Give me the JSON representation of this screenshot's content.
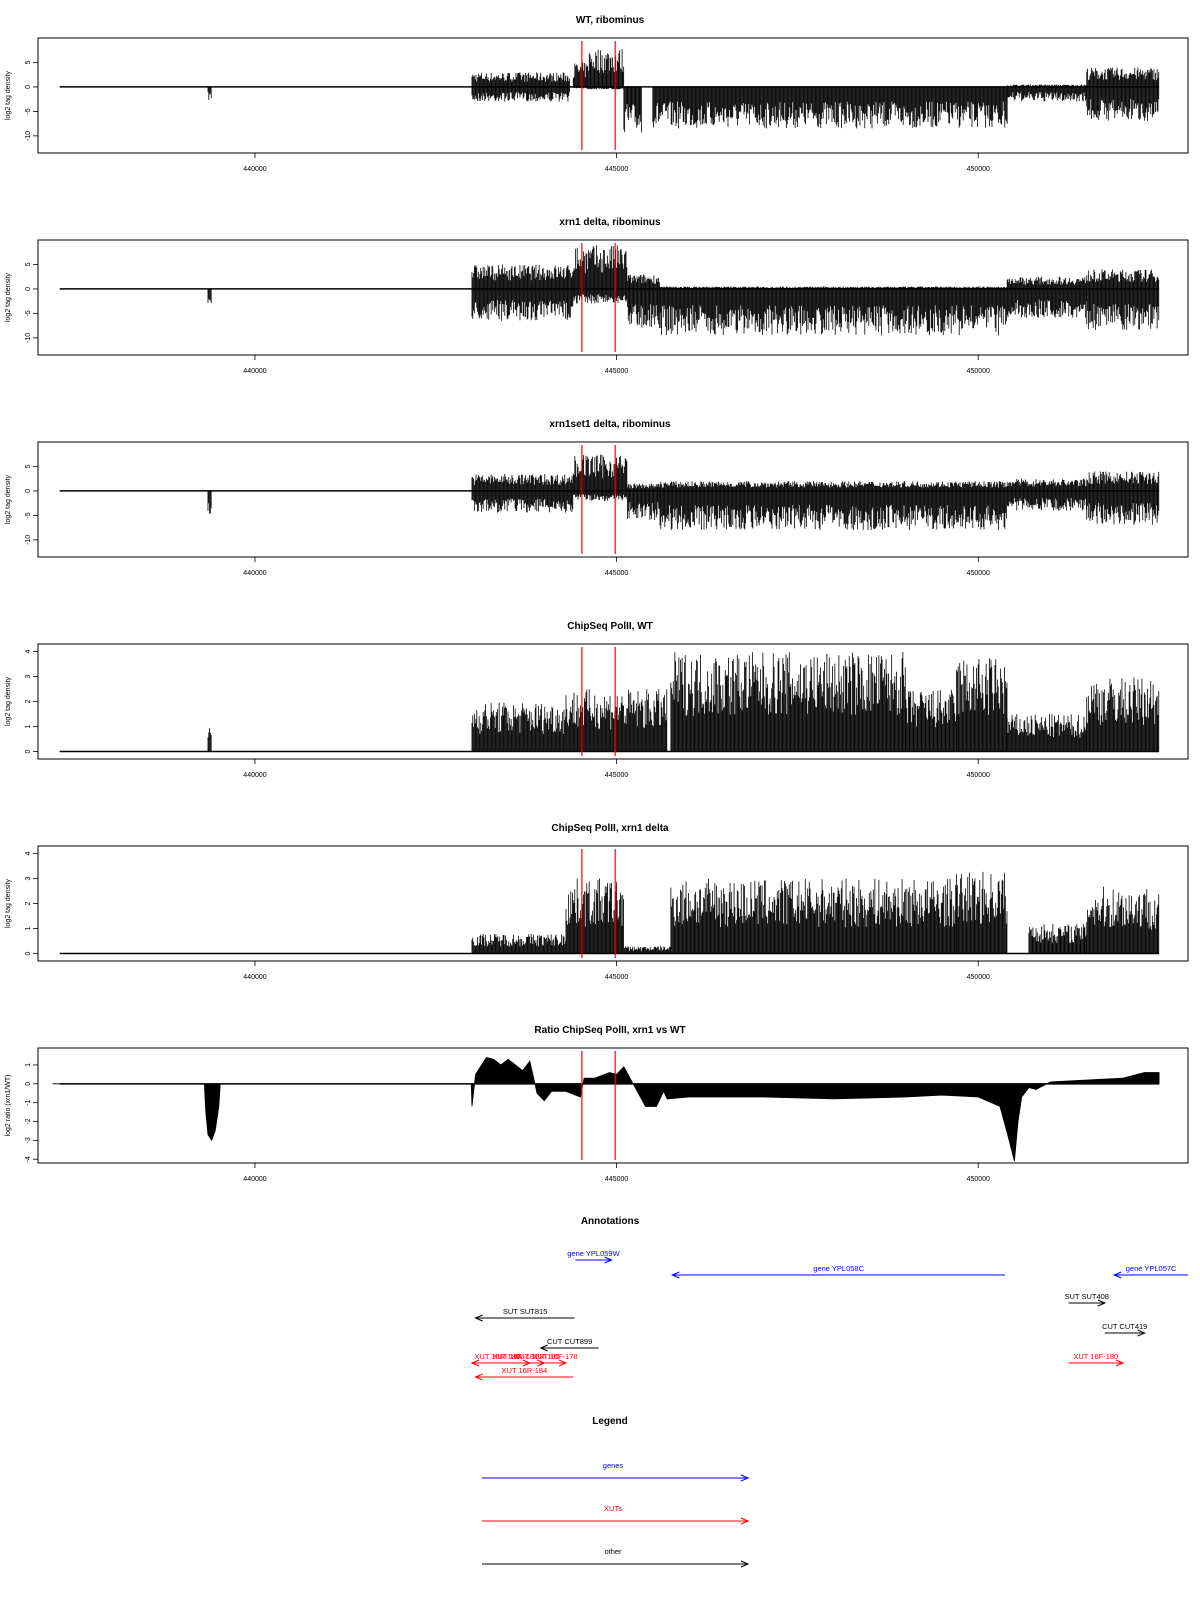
{
  "colors": {
    "gene": "#0000ff",
    "xut": "#ff0000",
    "other": "#000000",
    "marker": "#ff0000",
    "signal": "#000000"
  },
  "xaxis": {
    "range": [
      437000,
      452900
    ],
    "ticks": [
      440000,
      445000,
      450000
    ],
    "tick_labels": [
      "440000",
      "445000",
      "450000"
    ]
  },
  "chart_data": [
    {
      "type": "bar",
      "title": "WT, ribominus",
      "ylabel": "log2 tag density",
      "ylim": [
        -13.5,
        10
      ],
      "yticks": [
        5,
        0,
        -5,
        -10
      ],
      "ytick_labels": [
        "5",
        "0",
        "-5",
        "-10"
      ],
      "markers_x": [
        444520,
        444980
      ],
      "regions": [
        {
          "x": [
            439350,
            439400
          ],
          "up": 0,
          "down": 2.8
        },
        {
          "x": [
            443000,
            444350
          ],
          "up": 3,
          "down": 3
        },
        {
          "x": [
            444400,
            444600
          ],
          "up": 5,
          "down": 0.3
        },
        {
          "x": [
            444600,
            445100
          ],
          "up": 8,
          "down": 0.5
        },
        {
          "x": [
            445100,
            445350
          ],
          "up": 0,
          "down": 9.5
        },
        {
          "x": [
            445500,
            450400
          ],
          "up": 0,
          "down": 8.5
        },
        {
          "x": [
            450400,
            451500
          ],
          "up": 0.5,
          "down": 3
        },
        {
          "x": [
            451500,
            452500
          ],
          "up": 4,
          "down": 7
        }
      ]
    },
    {
      "type": "bar",
      "title": "xrn1 delta, ribominus",
      "ylabel": "log2 tag density",
      "ylim": [
        -13.5,
        10
      ],
      "yticks": [
        5,
        0,
        -5,
        -10
      ],
      "ytick_labels": [
        "5",
        "0",
        "-5",
        "-10"
      ],
      "markers_x": [
        444520,
        444980
      ],
      "regions": [
        {
          "x": [
            439350,
            439400
          ],
          "up": 0,
          "down": 4
        },
        {
          "x": [
            443000,
            444400
          ],
          "up": 5,
          "down": 6.5
        },
        {
          "x": [
            444400,
            445150
          ],
          "up": 9,
          "down": 3
        },
        {
          "x": [
            445150,
            445600
          ],
          "up": 3,
          "down": 8
        },
        {
          "x": [
            445600,
            450400
          ],
          "up": 0.5,
          "down": 9.5
        },
        {
          "x": [
            450400,
            451500
          ],
          "up": 2.5,
          "down": 6
        },
        {
          "x": [
            451500,
            452500
          ],
          "up": 4,
          "down": 8.5
        }
      ]
    },
    {
      "type": "bar",
      "title": "xrn1set1 delta, ribominus",
      "ylabel": "log2 tag density",
      "ylim": [
        -13.5,
        10
      ],
      "yticks": [
        5,
        0,
        -5,
        -10
      ],
      "ytick_labels": [
        "5",
        "0",
        "-5",
        "-10"
      ],
      "markers_x": [
        444520,
        444980
      ],
      "regions": [
        {
          "x": [
            439350,
            439400
          ],
          "up": 0,
          "down": 5.5
        },
        {
          "x": [
            443000,
            444400
          ],
          "up": 3.5,
          "down": 4.5
        },
        {
          "x": [
            444400,
            445150
          ],
          "up": 7.5,
          "down": 2
        },
        {
          "x": [
            445150,
            445600
          ],
          "up": 1.5,
          "down": 6
        },
        {
          "x": [
            445600,
            450400
          ],
          "up": 2,
          "down": 8
        },
        {
          "x": [
            450400,
            451500
          ],
          "up": 2.5,
          "down": 4
        },
        {
          "x": [
            451500,
            452500
          ],
          "up": 4,
          "down": 7
        }
      ]
    },
    {
      "type": "bar",
      "title": "ChipSeq PolII, WT",
      "ylabel": "log2 tag density",
      "ylim": [
        -0.3,
        4.3
      ],
      "yticks": [
        0,
        1,
        2,
        3,
        4
      ],
      "ytick_labels": [
        "0",
        "1",
        "2",
        "3",
        "4"
      ],
      "markers_x": [
        444520,
        444980
      ],
      "regions": [
        {
          "x": [
            439350,
            439400
          ],
          "up": 1,
          "down": 0
        },
        {
          "x": [
            443000,
            444300
          ],
          "up": 2,
          "down": 0
        },
        {
          "x": [
            444300,
            445700
          ],
          "up": 2.5,
          "down": 0
        },
        {
          "x": [
            445750,
            449000
          ],
          "up": 4,
          "down": 0
        },
        {
          "x": [
            449000,
            449700
          ],
          "up": 2.5,
          "down": 0
        },
        {
          "x": [
            449700,
            450400
          ],
          "up": 3.8,
          "down": 0
        },
        {
          "x": [
            450400,
            451500
          ],
          "up": 1.5,
          "down": 0
        },
        {
          "x": [
            451500,
            452500
          ],
          "up": 3,
          "down": 0
        }
      ]
    },
    {
      "type": "bar",
      "title": "ChipSeq PolII, xrn1 delta",
      "ylabel": "log2 tag density",
      "ylim": [
        -0.3,
        4.3
      ],
      "yticks": [
        0,
        1,
        2,
        3,
        4
      ],
      "ytick_labels": [
        "0",
        "1",
        "2",
        "3",
        "4"
      ],
      "markers_x": [
        444520,
        444980
      ],
      "regions": [
        {
          "x": [
            443000,
            444300
          ],
          "up": 0.8,
          "down": 0
        },
        {
          "x": [
            444300,
            445100
          ],
          "up": 3,
          "down": 0
        },
        {
          "x": [
            445100,
            445750
          ],
          "up": 0.3,
          "down": 0
        },
        {
          "x": [
            445750,
            449700
          ],
          "up": 3,
          "down": 0
        },
        {
          "x": [
            449700,
            450400
          ],
          "up": 3.3,
          "down": 0
        },
        {
          "x": [
            450700,
            451500
          ],
          "up": 1.2,
          "down": 0
        },
        {
          "x": [
            451500,
            452500
          ],
          "up": 2.7,
          "down": 0
        }
      ]
    },
    {
      "type": "area",
      "title": "Ratio ChipSeq PolII, xrn1 vs WT",
      "ylabel": "log2 ratio (xrn1/WT)",
      "ylim": [
        -4.2,
        1.9
      ],
      "yticks": [
        1,
        0,
        -1,
        -2,
        -3,
        -4
      ],
      "ytick_labels": [
        "1",
        "0",
        "-1",
        "-2",
        "-3",
        "-4"
      ],
      "markers_x": [
        444520,
        444980
      ],
      "x": [
        437200,
        439300,
        439320,
        439350,
        439400,
        439450,
        439500,
        439520,
        442990,
        443000,
        443050,
        443200,
        443300,
        443400,
        443500,
        443700,
        443800,
        443900,
        444000,
        444100,
        444300,
        444500,
        444550,
        444700,
        444900,
        445000,
        445100,
        445300,
        445400,
        445550,
        445650,
        445700,
        446000,
        447000,
        448000,
        449000,
        449500,
        450000,
        450300,
        450400,
        450500,
        450550,
        450600,
        450700,
        450800,
        451000,
        451500,
        452000,
        452300,
        452500
      ],
      "y": [
        0,
        0,
        -1.5,
        -2.7,
        -3.0,
        -2.5,
        -1.2,
        0,
        0,
        -1.2,
        0.5,
        1.4,
        1.3,
        1.0,
        1.3,
        0.7,
        1.2,
        -0.5,
        -0.9,
        -0.4,
        -0.4,
        -0.7,
        0.3,
        0.3,
        0.6,
        0.5,
        0.9,
        -0.5,
        -1.2,
        -1.2,
        -0.4,
        -0.8,
        -0.7,
        -0.7,
        -0.8,
        -0.7,
        -0.6,
        -0.7,
        -1.2,
        -2.6,
        -4.1,
        -2.0,
        -0.7,
        -0.2,
        -0.3,
        0.1,
        0.2,
        0.3,
        0.6,
        0.6
      ]
    }
  ],
  "annotations": {
    "title": "Annotations",
    "features": [
      {
        "label": "gene YPL059W",
        "kind": "gene",
        "start": 444430,
        "end": 444930,
        "dir": "right",
        "row": 0
      },
      {
        "label": "gene YPL058C",
        "kind": "gene",
        "start": 445770,
        "end": 450370,
        "dir": "left",
        "row": 1
      },
      {
        "label": "gene YPL057C",
        "kind": "gene",
        "start": 451880,
        "end": 452900,
        "dir": "left",
        "row": 1
      },
      {
        "label": "SUT SUT408",
        "kind": "other",
        "start": 451250,
        "end": 451750,
        "dir": "right",
        "row": 3
      },
      {
        "label": "SUT SUT815",
        "kind": "other",
        "start": 443050,
        "end": 444420,
        "dir": "left",
        "row": 4
      },
      {
        "label": "CUT CUT419",
        "kind": "other",
        "start": 451750,
        "end": 452300,
        "dir": "right",
        "row": 5
      },
      {
        "label": "CUT CUT899",
        "kind": "other",
        "start": 443950,
        "end": 444750,
        "dir": "left",
        "row": 6
      },
      {
        "label": "XUT 16R-180",
        "kind": "xut",
        "start": 443000,
        "end": 443700,
        "dir": "left",
        "row": 7
      },
      {
        "label": "XUT 16R-181",
        "kind": "xut",
        "start": 443400,
        "end": 443800,
        "dir": "right",
        "row": 7
      },
      {
        "label": "XUT 16R-185",
        "kind": "xut",
        "start": 443800,
        "end": 444000,
        "dir": "right",
        "row": 7
      },
      {
        "label": "XUT 16F-178",
        "kind": "xut",
        "start": 444000,
        "end": 444300,
        "dir": "right",
        "row": 7
      },
      {
        "label": "XUT 16F-180",
        "kind": "xut",
        "start": 451250,
        "end": 452000,
        "dir": "right",
        "row": 7
      },
      {
        "label": "XUT 16R-184",
        "kind": "xut",
        "start": 443050,
        "end": 444400,
        "dir": "left",
        "row": 8
      }
    ]
  },
  "legend": {
    "title": "Legend",
    "items": [
      {
        "label": "genes",
        "kind": "gene"
      },
      {
        "label": "XUTs",
        "kind": "xut"
      },
      {
        "label": "other",
        "kind": "other"
      }
    ]
  }
}
